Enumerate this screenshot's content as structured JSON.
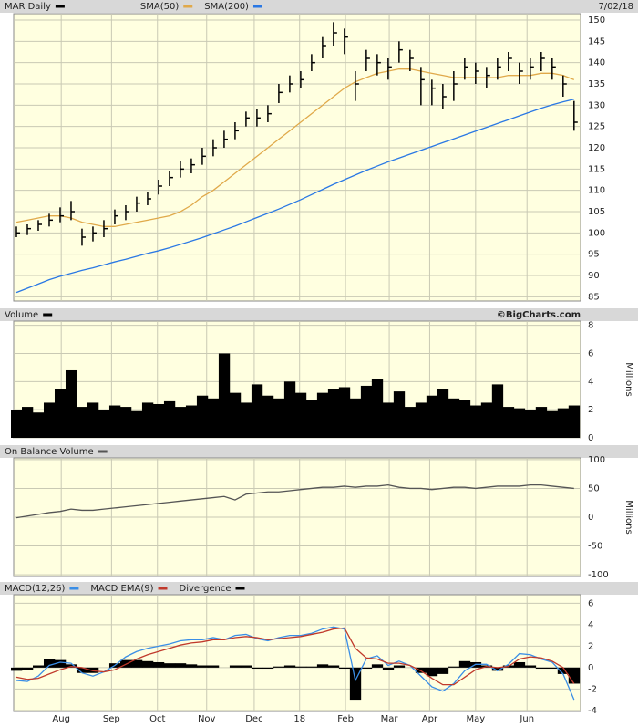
{
  "chart_data": [
    {
      "type": "ohlc",
      "title": "MAR Daily",
      "date": "7/02/18",
      "color": "#000000",
      "high": [
        101.5,
        102,
        103,
        104.5,
        106,
        107.5,
        101,
        101.5,
        103,
        105.5,
        106.5,
        108.5,
        109.5,
        112.5,
        114.5,
        117,
        117.5,
        120,
        122,
        124,
        126,
        128.5,
        129,
        130,
        135,
        137,
        138,
        142,
        146,
        149.5,
        148,
        138,
        143,
        142,
        141,
        145,
        143,
        139,
        136,
        135,
        138,
        141,
        140,
        139,
        141,
        142.5,
        140,
        141,
        142.5,
        141,
        137,
        131
      ],
      "low": [
        99,
        99.5,
        100.5,
        101.5,
        102.5,
        103,
        97,
        98,
        99,
        102,
        103,
        105,
        106.5,
        109,
        111,
        113,
        114,
        116,
        118,
        120,
        122,
        125,
        125,
        126,
        130.5,
        133,
        134,
        138,
        141,
        144,
        142,
        131,
        138,
        137,
        136,
        140,
        138,
        130,
        130,
        129,
        131,
        136,
        135,
        134,
        136,
        138,
        135,
        136,
        138,
        136,
        132,
        124
      ],
      "close": [
        100,
        101,
        102,
        103,
        104,
        105,
        99,
        100,
        101,
        104,
        105,
        107,
        108,
        111,
        113,
        115,
        116,
        118,
        120,
        122,
        124,
        127,
        127,
        128,
        133,
        135,
        136,
        140,
        144,
        147,
        146,
        135,
        141,
        140,
        139,
        143,
        141,
        136,
        134,
        132,
        135,
        139,
        138,
        137,
        139,
        141,
        138,
        139,
        141,
        139,
        135,
        126
      ],
      "series": [
        {
          "name": "SMA(50)",
          "color": "#e0a94a",
          "values": [
            102.5,
            103,
            103.5,
            104,
            104,
            103.5,
            102.5,
            102,
            101.5,
            101.5,
            102,
            102.5,
            103,
            103.5,
            104,
            105,
            106.5,
            108.5,
            110,
            112,
            114,
            116,
            118,
            120,
            122,
            124,
            126,
            128,
            130,
            132,
            134,
            135.5,
            136.5,
            137.5,
            138,
            138.5,
            138.5,
            138,
            137.5,
            137,
            136.5,
            136.5,
            136.5,
            136.5,
            136.5,
            137,
            137,
            137,
            137.5,
            137.5,
            137,
            136
          ]
        },
        {
          "name": "SMA(200)",
          "color": "#2a78e4",
          "values": [
            86,
            87,
            88,
            89,
            89.8,
            90.5,
            91.2,
            91.8,
            92.5,
            93.2,
            93.8,
            94.5,
            95.2,
            95.8,
            96.5,
            97.3,
            98.1,
            98.9,
            99.8,
            100.7,
            101.6,
            102.6,
            103.6,
            104.6,
            105.6,
            106.7,
            107.8,
            109,
            110.2,
            111.4,
            112.5,
            113.6,
            114.7,
            115.7,
            116.7,
            117.6,
            118.5,
            119.4,
            120.3,
            121.2,
            122.1,
            123,
            123.9,
            124.8,
            125.7,
            126.6,
            127.5,
            128.4,
            129.3,
            130.1,
            130.8,
            131.4
          ]
        }
      ],
      "ylim": [
        84,
        151.5
      ],
      "yticks": [
        85,
        90,
        95,
        100,
        105,
        110,
        115,
        120,
        125,
        130,
        135,
        140,
        145,
        150
      ]
    },
    {
      "type": "bar",
      "credit": "©BigCharts.com",
      "y_label": "Millions",
      "series": [
        {
          "name": "Volume",
          "color": "#000000",
          "values": [
            2,
            2.2,
            1.8,
            2.5,
            3.5,
            4.8,
            2.2,
            2.5,
            2,
            2.3,
            2.2,
            1.9,
            2.5,
            2.4,
            2.6,
            2.2,
            2.3,
            3,
            2.8,
            6,
            3.2,
            2.5,
            3.8,
            3,
            2.8,
            4,
            3.2,
            2.7,
            3.2,
            3.5,
            3.6,
            2.8,
            3.7,
            4.2,
            2.5,
            3.3,
            2.2,
            2.5,
            3,
            3.5,
            2.8,
            2.7,
            2.3,
            2.5,
            3.8,
            2.2,
            2.1,
            2,
            2.2,
            1.9,
            2.1,
            2.3
          ]
        }
      ],
      "ylim": [
        0,
        8.3
      ],
      "yticks": [
        0,
        2,
        4,
        6,
        8
      ]
    },
    {
      "type": "line",
      "y_label": "Millions",
      "series": [
        {
          "name": "On Balance Volume",
          "color": "#555555",
          "values": [
            -1,
            2,
            5,
            8,
            10,
            14,
            12,
            12,
            14,
            16,
            18,
            20,
            22,
            24,
            26,
            28,
            30,
            32,
            34,
            36,
            30,
            40,
            42,
            44,
            44,
            46,
            48,
            50,
            52,
            52,
            54,
            52,
            54,
            54,
            56,
            52,
            50,
            50,
            48,
            50,
            52,
            52,
            50,
            52,
            54,
            54,
            54,
            56,
            56,
            54,
            52,
            50
          ]
        }
      ],
      "ylim": [
        -103,
        103
      ],
      "yticks": [
        -100,
        -50,
        0,
        50,
        100
      ]
    },
    {
      "type": "macd",
      "series": [
        {
          "name": "MACD(12,26)",
          "color": "#3a8ee6",
          "values": [
            -1.2,
            -1.3,
            -0.8,
            0.2,
            0.5,
            0.4,
            -0.5,
            -0.8,
            -0.4,
            0.2,
            1,
            1.5,
            1.8,
            2,
            2.2,
            2.5,
            2.6,
            2.6,
            2.8,
            2.6,
            3,
            3.1,
            2.7,
            2.5,
            2.8,
            3,
            3,
            3.2,
            3.6,
            3.8,
            3.6,
            -1.2,
            0.8,
            1.1,
            0.2,
            0.6,
            0.2,
            -0.8,
            -1.8,
            -2.2,
            -1.5,
            -0.3,
            0.3,
            0.3,
            -0.3,
            0.3,
            1.3,
            1.2,
            0.8,
            0.5,
            -0.6,
            -3
          ]
        },
        {
          "name": "MACD EMA(9)",
          "color": "#c0392b",
          "values": [
            -0.9,
            -1.1,
            -1,
            -0.6,
            -0.2,
            0.1,
            0,
            -0.3,
            -0.4,
            -0.2,
            0.3,
            0.8,
            1.2,
            1.5,
            1.8,
            2.1,
            2.3,
            2.4,
            2.6,
            2.6,
            2.8,
            2.9,
            2.8,
            2.6,
            2.7,
            2.8,
            2.9,
            3.1,
            3.3,
            3.6,
            3.7,
            1.8,
            0.9,
            0.8,
            0.4,
            0.4,
            0.2,
            -0.3,
            -1,
            -1.6,
            -1.6,
            -0.9,
            -0.2,
            0.1,
            0,
            0.1,
            0.8,
            1,
            0.9,
            0.6,
            0,
            -1.5
          ]
        },
        {
          "name": "Divergence",
          "color": "#000000",
          "values": [
            -0.3,
            -0.2,
            0.2,
            0.8,
            0.7,
            0.3,
            -0.5,
            -0.5,
            0,
            0.4,
            0.7,
            0.7,
            0.6,
            0.5,
            0.4,
            0.4,
            0.3,
            0.2,
            0.2,
            0,
            0.2,
            0.2,
            -0.1,
            -0.1,
            0.1,
            0.2,
            0.1,
            0.1,
            0.3,
            0.2,
            -0.1,
            -3,
            -0.1,
            0.3,
            -0.2,
            0.2,
            0,
            -0.5,
            -0.8,
            -0.6,
            0.1,
            0.6,
            0.5,
            0.2,
            -0.3,
            0.2,
            0.5,
            0.2,
            -0.1,
            -0.1,
            -0.6,
            -1.5
          ]
        }
      ],
      "ylim": [
        -4.1,
        6.8
      ],
      "yticks": [
        -4,
        -2,
        0,
        2,
        4,
        6
      ],
      "xlim": [
        -0.25,
        51.6
      ],
      "xticks": [
        {
          "value": 4.1,
          "label": "Aug"
        },
        {
          "value": 8.7,
          "label": "Sep"
        },
        {
          "value": 12.9,
          "label": "Oct"
        },
        {
          "value": 17.4,
          "label": "Nov"
        },
        {
          "value": 21.75,
          "label": "Dec"
        },
        {
          "value": 25.9,
          "label": "18"
        },
        {
          "value": 30.1,
          "label": "Feb"
        },
        {
          "value": 34.1,
          "label": "Mar"
        },
        {
          "value": 37.8,
          "label": "Apr"
        },
        {
          "value": 42,
          "label": "May"
        },
        {
          "value": 46.7,
          "label": "Jun"
        }
      ]
    }
  ]
}
